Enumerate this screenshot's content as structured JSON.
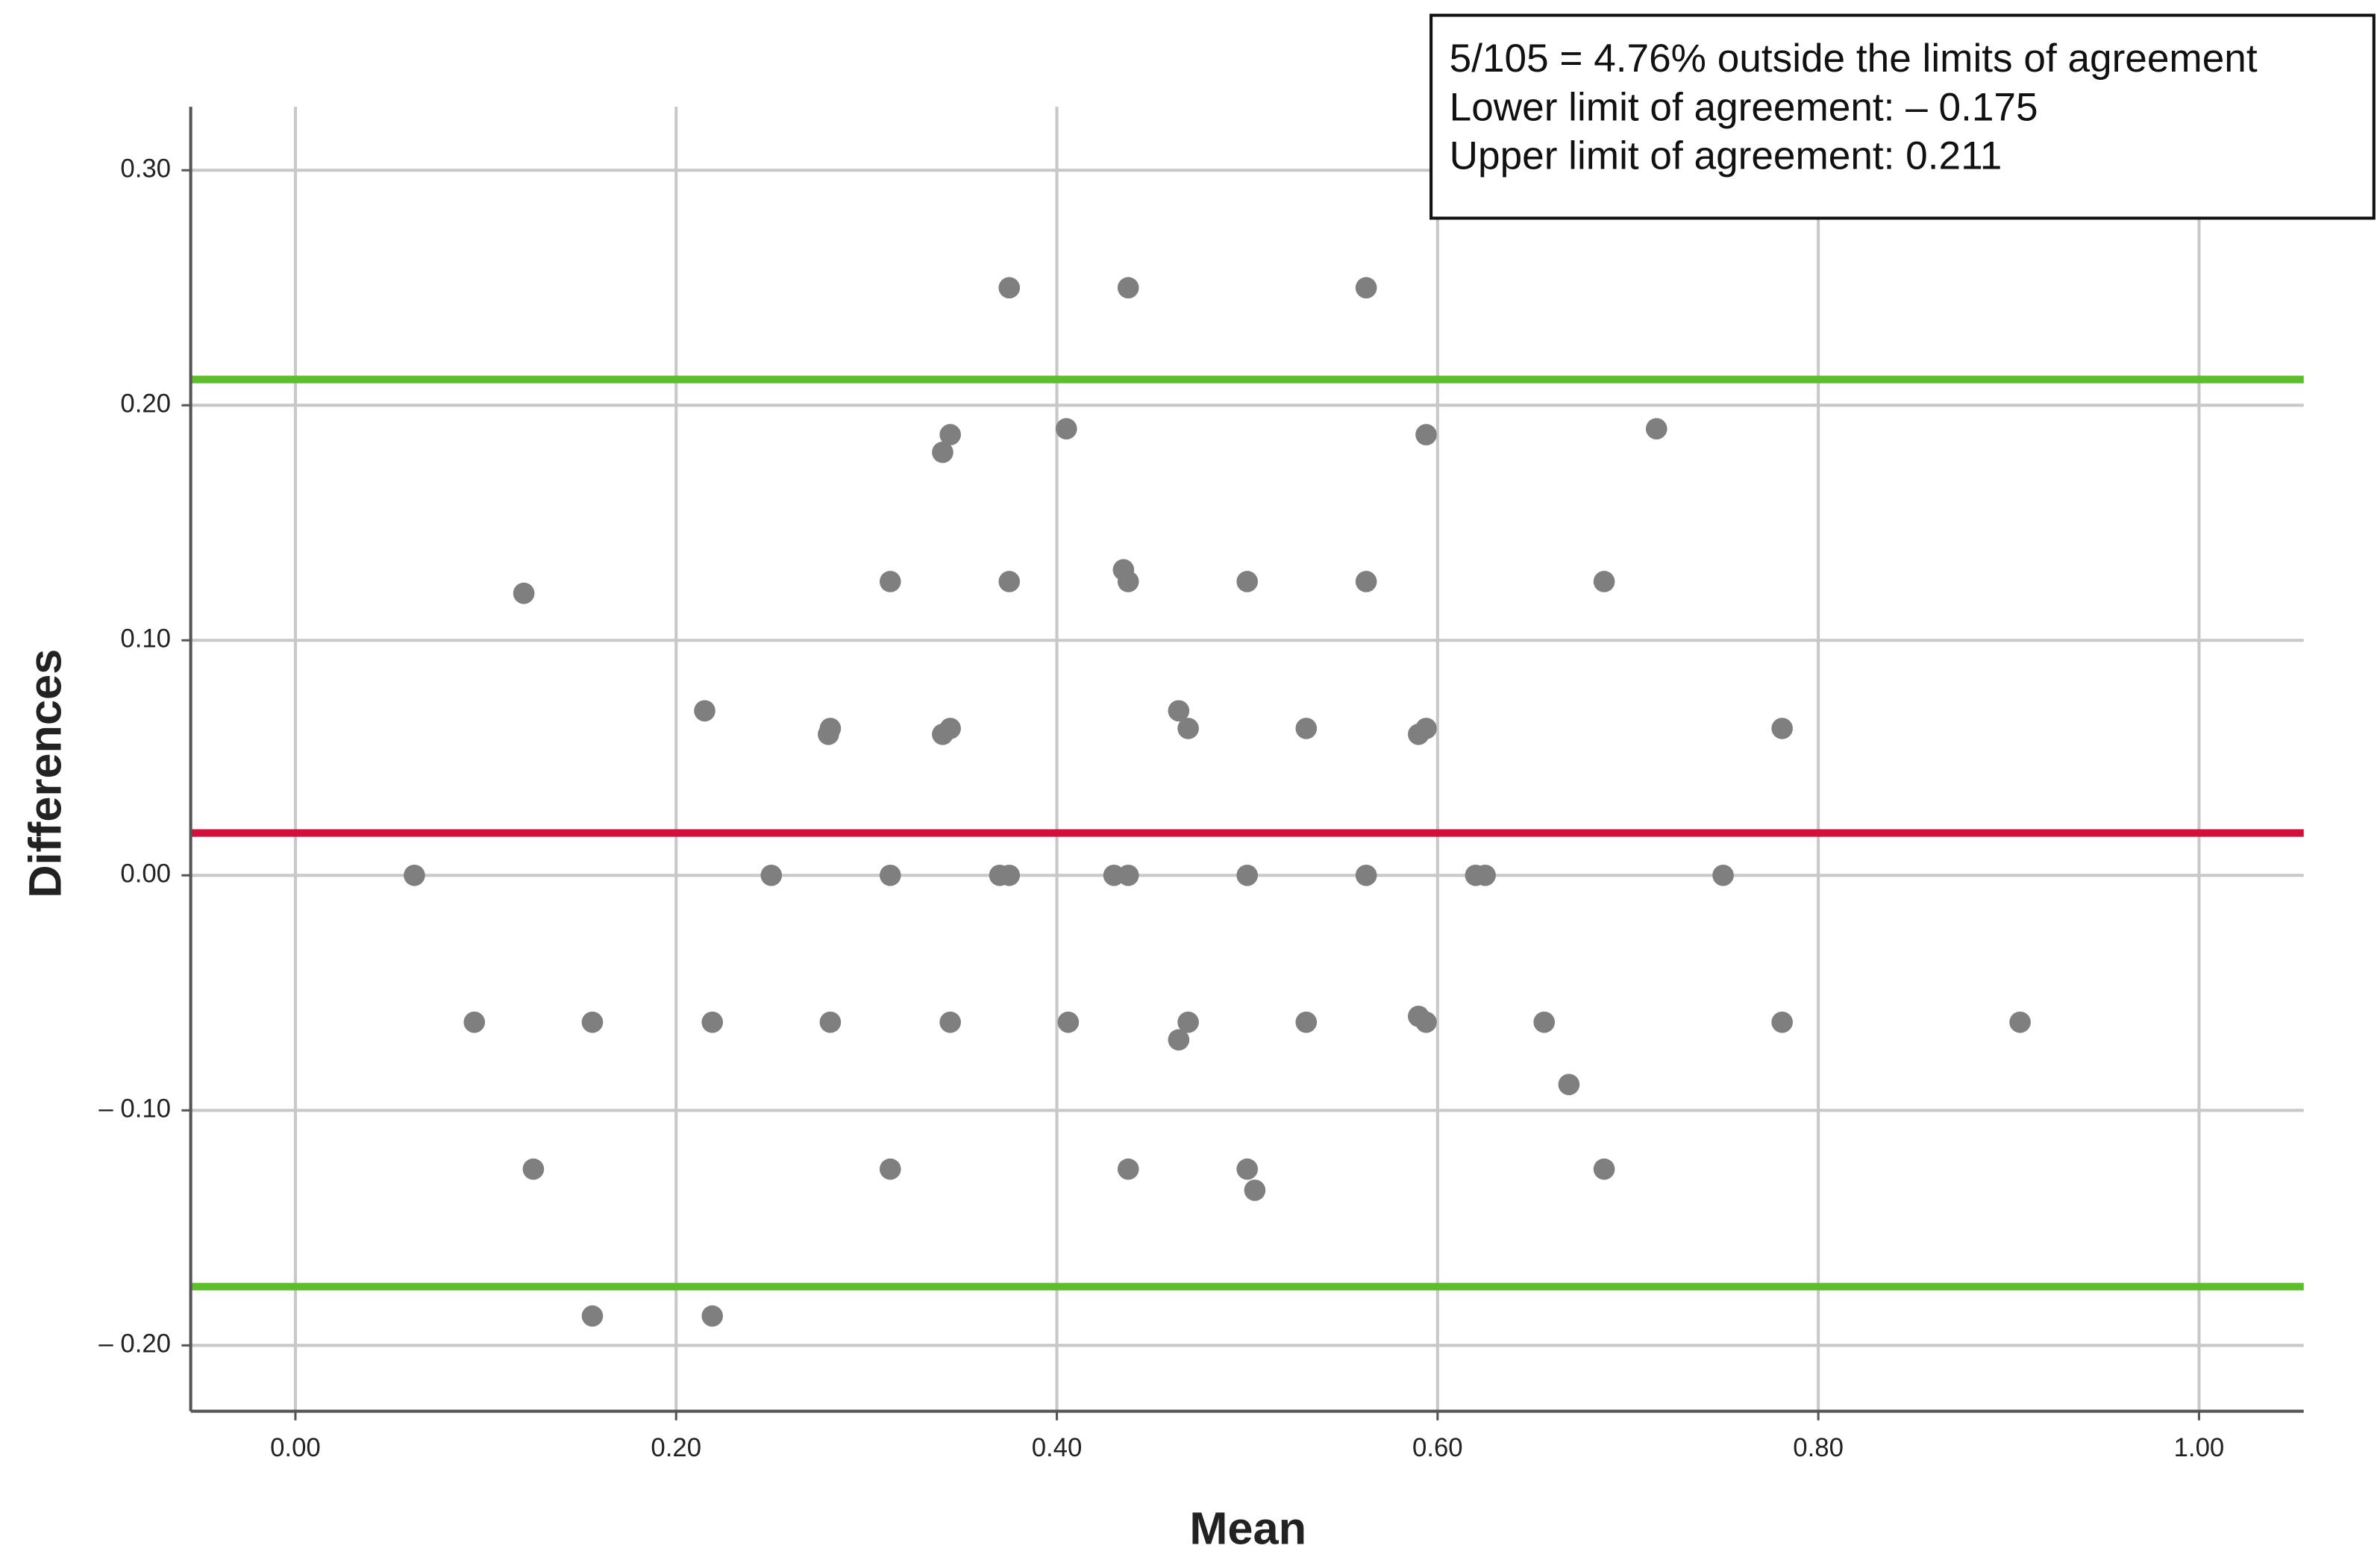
{
  "chart_data": {
    "type": "scatter",
    "x_label": "Mean",
    "y_label": "Differences",
    "annotations": [
      "5/105 = 4.76% outside the limits of agreement",
      "Lower limit of agreement: – 0.175",
      "Upper limit of agreement:  0.211"
    ],
    "xlim": [
      -0.055,
      1.055
    ],
    "ylim": [
      -0.228,
      0.327
    ],
    "xticks": [
      {
        "value": 0,
        "label": "0.00"
      },
      {
        "value": 0.2,
        "label": "0.20"
      },
      {
        "value": 0.4,
        "label": "0.40"
      },
      {
        "value": 0.6,
        "label": "0.60"
      },
      {
        "value": 0.8,
        "label": "0.80"
      },
      {
        "value": 1,
        "label": "1.00"
      }
    ],
    "yticks": [
      {
        "value": -0.2,
        "label": "– 0.20"
      },
      {
        "value": -0.1,
        "label": "– 0.10"
      },
      {
        "value": 0,
        "label": "0.00"
      },
      {
        "value": 0.1,
        "label": "0.10"
      },
      {
        "value": 0.2,
        "label": "0.20"
      },
      {
        "value": 0.3,
        "label": "0.30"
      }
    ],
    "grid": true,
    "color": "#7f7f7f",
    "reference_lines": [
      {
        "value": 0.018,
        "color": "#d40f3c"
      },
      {
        "value": 0.211,
        "color": "#5cbf2a"
      },
      {
        "value": -0.175,
        "color": "#5cbf2a"
      }
    ],
    "x": [
      0.375,
      0.4375,
      0.5625,
      0.405,
      0.344,
      0.34,
      0.594,
      0.715,
      0.3125,
      0.375,
      0.4375,
      0.5,
      0.5625,
      0.6875,
      0.435,
      0.12,
      0.215,
      0.28,
      0.281,
      0.34,
      0.344,
      0.464,
      0.469,
      0.531,
      0.59,
      0.594,
      0.781,
      0.0625,
      0.25,
      0.3125,
      0.37,
      0.375,
      0.43,
      0.4375,
      0.5,
      0.5625,
      0.62,
      0.625,
      0.75,
      0.094,
      0.156,
      0.219,
      0.281,
      0.344,
      0.406,
      0.469,
      0.531,
      0.59,
      0.594,
      0.656,
      0.781,
      0.906,
      0.464,
      0.669,
      0.125,
      0.3125,
      0.4375,
      0.5,
      0.6875,
      0.504,
      0.156,
      0.219
    ],
    "y": [
      0.25,
      0.25,
      0.25,
      0.19,
      0.1875,
      0.18,
      0.1875,
      0.19,
      0.125,
      0.125,
      0.125,
      0.125,
      0.125,
      0.125,
      0.13,
      0.12,
      0.07,
      0.06,
      0.0625,
      0.06,
      0.0625,
      0.07,
      0.0625,
      0.0625,
      0.06,
      0.0625,
      0.0625,
      0,
      0,
      0,
      0,
      0,
      0,
      0,
      0,
      0,
      0,
      0,
      0,
      -0.0625,
      -0.0625,
      -0.0625,
      -0.0625,
      -0.0625,
      -0.0625,
      -0.0625,
      -0.0625,
      -0.06,
      -0.0625,
      -0.0625,
      -0.0625,
      -0.0625,
      -0.07,
      -0.089,
      -0.125,
      -0.125,
      -0.125,
      -0.125,
      -0.125,
      -0.134,
      -0.1875,
      -0.1875
    ]
  }
}
